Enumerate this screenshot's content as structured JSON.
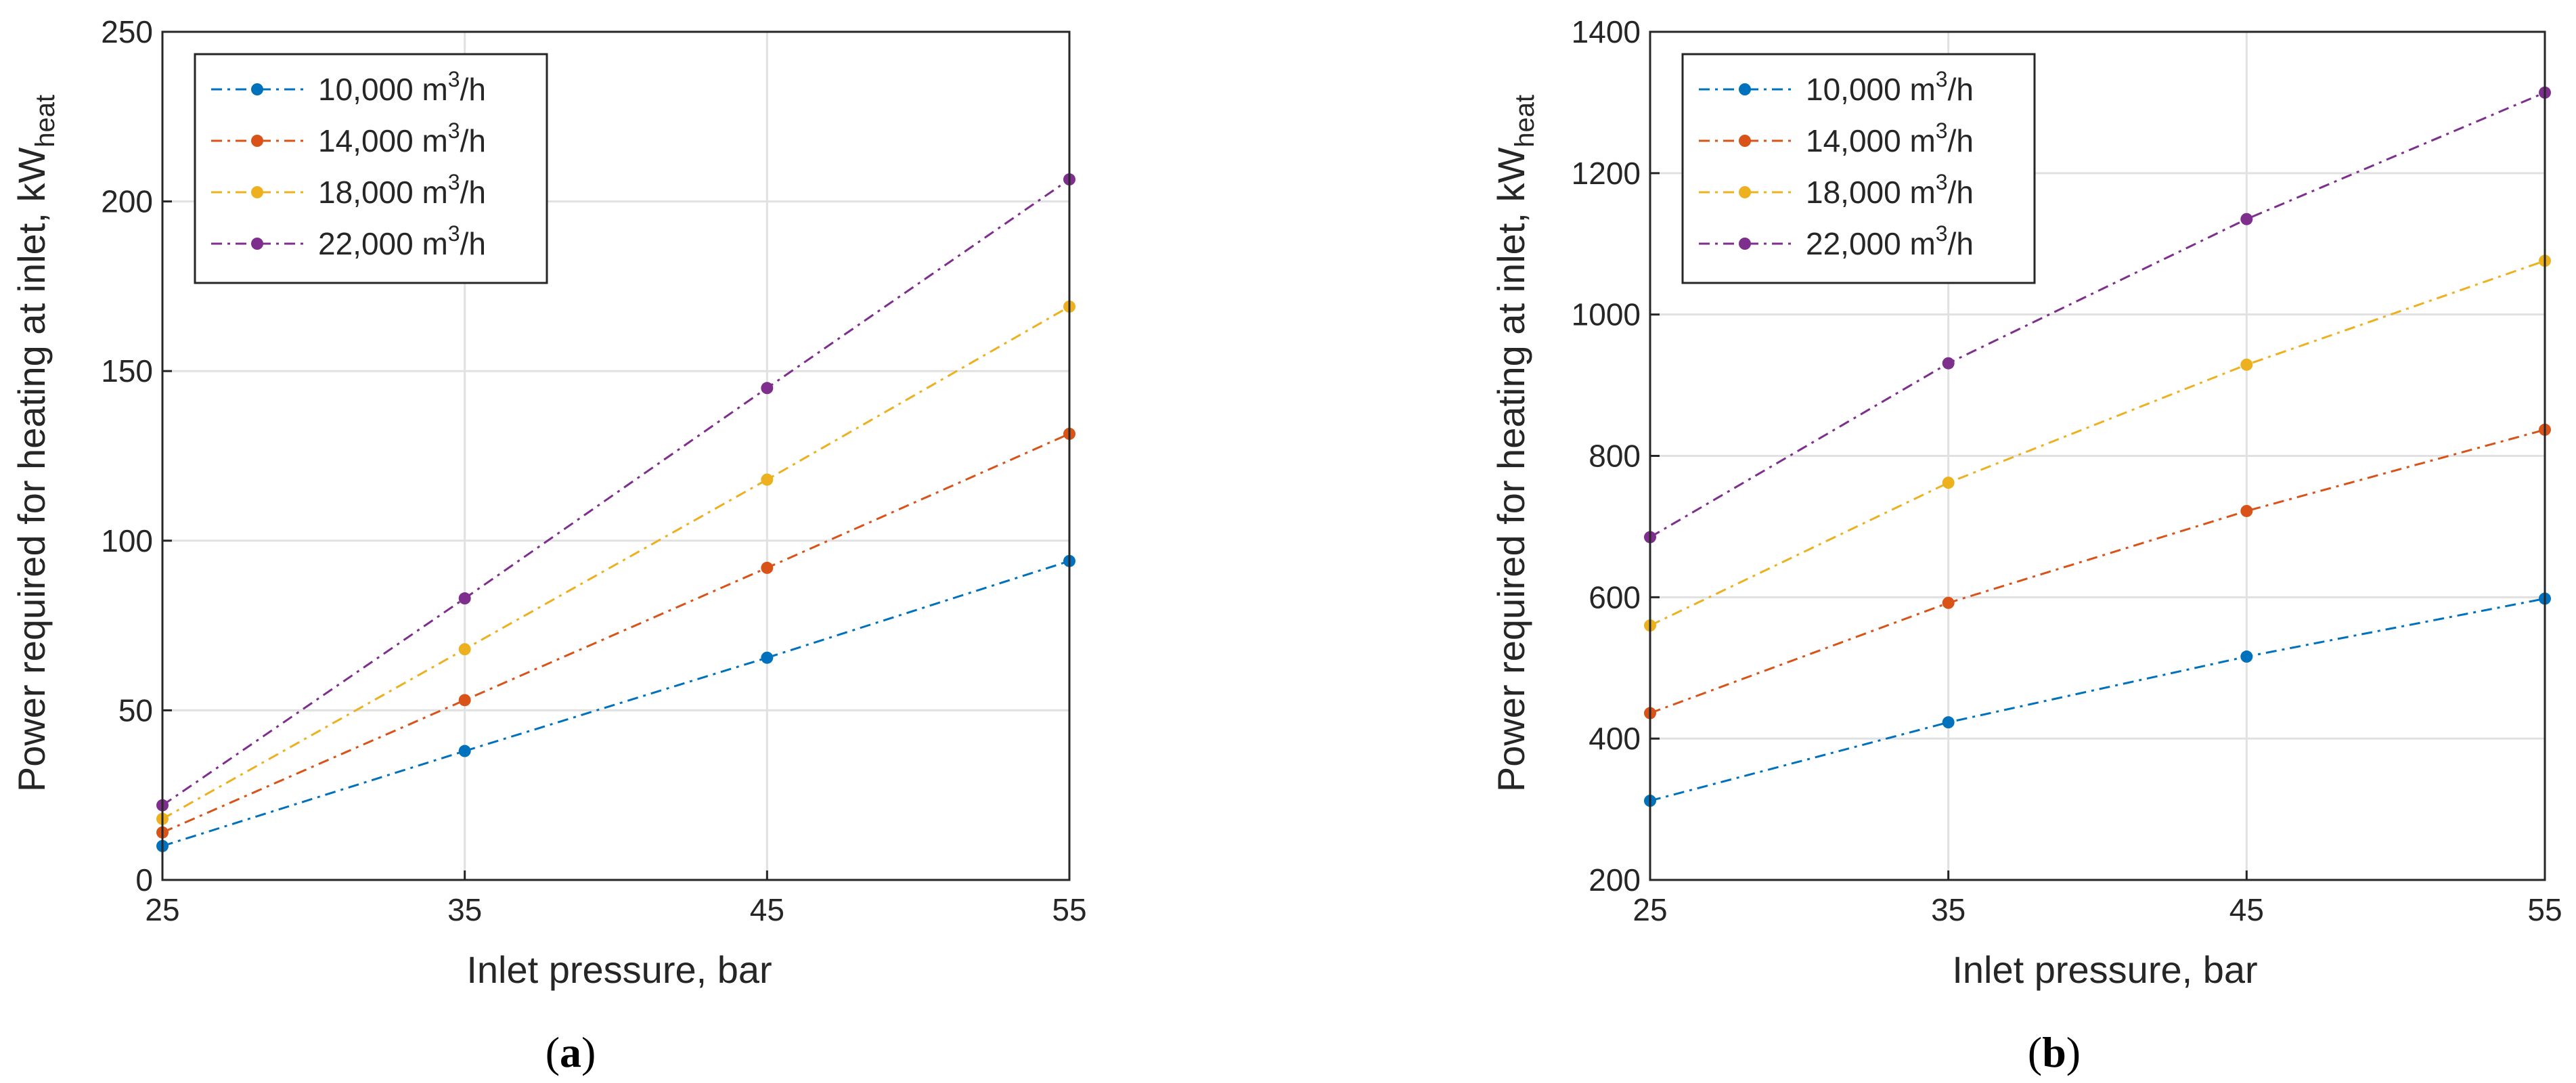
{
  "figure": {
    "panels": [
      {
        "label_open": "(",
        "label_letter": "a",
        "label_close": ")"
      },
      {
        "label_open": "(",
        "label_letter": "b",
        "label_close": ")"
      }
    ]
  },
  "chart_data": [
    {
      "type": "line",
      "title": "",
      "xlabel": "Inlet pressure, bar",
      "ylabel_main": "Power required for heating at inlet, kW",
      "ylabel_sub": "heat",
      "x": [
        25,
        35,
        45,
        55
      ],
      "xlim": [
        25,
        55
      ],
      "ylim": [
        0,
        250
      ],
      "xticks": [
        "25",
        "35",
        "45",
        "55"
      ],
      "yticks": [
        "0",
        "50",
        "100",
        "150",
        "200",
        "250"
      ],
      "grid": true,
      "legend_position": "top-left",
      "series": [
        {
          "name": "10,000 m",
          "unit_sup": "3",
          "unit_tail": "/h",
          "values": [
            10,
            38,
            65.5,
            94
          ],
          "color": "#0072BD"
        },
        {
          "name": "14,000 m",
          "unit_sup": "3",
          "unit_tail": "/h",
          "values": [
            14,
            53,
            92,
            131.5
          ],
          "color": "#D95319"
        },
        {
          "name": "18,000 m",
          "unit_sup": "3",
          "unit_tail": "/h",
          "values": [
            18,
            68,
            118,
            169
          ],
          "color": "#EDB120"
        },
        {
          "name": "22,000 m",
          "unit_sup": "3",
          "unit_tail": "/h",
          "values": [
            22,
            83,
            145,
            206.5
          ],
          "color": "#7E2F8E"
        }
      ]
    },
    {
      "type": "line",
      "title": "",
      "xlabel": "Inlet pressure, bar",
      "ylabel_main": "Power required for heating at inlet, kW",
      "ylabel_sub": "heat",
      "x": [
        25,
        35,
        45,
        55
      ],
      "xlim": [
        25,
        55
      ],
      "ylim": [
        200,
        1400
      ],
      "xticks": [
        "25",
        "35",
        "45",
        "55"
      ],
      "yticks": [
        "200",
        "400",
        "600",
        "800",
        "1000",
        "1200",
        "1400"
      ],
      "grid": true,
      "legend_position": "top-left",
      "series": [
        {
          "name": "10,000 m",
          "unit_sup": "3",
          "unit_tail": "/h",
          "values": [
            312,
            423,
            516,
            598
          ],
          "color": "#0072BD"
        },
        {
          "name": "14,000 m",
          "unit_sup": "3",
          "unit_tail": "/h",
          "values": [
            436,
            592,
            722,
            837
          ],
          "color": "#D95319"
        },
        {
          "name": "18,000 m",
          "unit_sup": "3",
          "unit_tail": "/h",
          "values": [
            560,
            762,
            929,
            1076
          ],
          "color": "#EDB120"
        },
        {
          "name": "22,000 m",
          "unit_sup": "3",
          "unit_tail": "/h",
          "values": [
            685,
            931,
            1135,
            1314
          ],
          "color": "#7E2F8E"
        }
      ]
    }
  ]
}
